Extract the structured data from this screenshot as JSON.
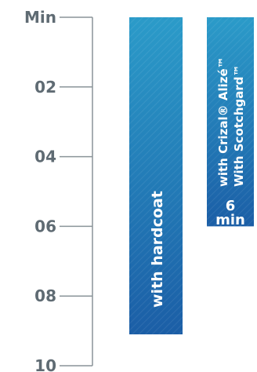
{
  "chart_data": {
    "type": "bar",
    "orientation": "vertical",
    "y_axis_direction": "down",
    "ylabel": "",
    "ylim": [
      0,
      10
    ],
    "yticks": [
      {
        "value": 0,
        "label": "Min"
      },
      {
        "value": 2,
        "label": "02"
      },
      {
        "value": 4,
        "label": "04"
      },
      {
        "value": 6,
        "label": "06"
      },
      {
        "value": 8,
        "label": "08"
      },
      {
        "value": 10,
        "label": "10"
      }
    ],
    "categories": [
      "with hardcoat",
      "with Crizal® Alizé™ With Scotchgard™"
    ],
    "values": [
      9.1,
      6
    ],
    "bars": [
      {
        "label": "with hardcoat",
        "value": 9.1,
        "value_label": ""
      },
      {
        "label_line1": "with Crizal® Alizé™",
        "label_line2": "With Scotchgard™",
        "value": 6,
        "value_label_number": "6",
        "value_label_unit": "min"
      }
    ],
    "colors": {
      "bar_top": "#2b9bc9",
      "bar_bottom": "#1b5ea6",
      "axis": "#8a9499",
      "text": "#5f6b73",
      "label": "#ffffff"
    },
    "grid": false,
    "legend": "none"
  }
}
